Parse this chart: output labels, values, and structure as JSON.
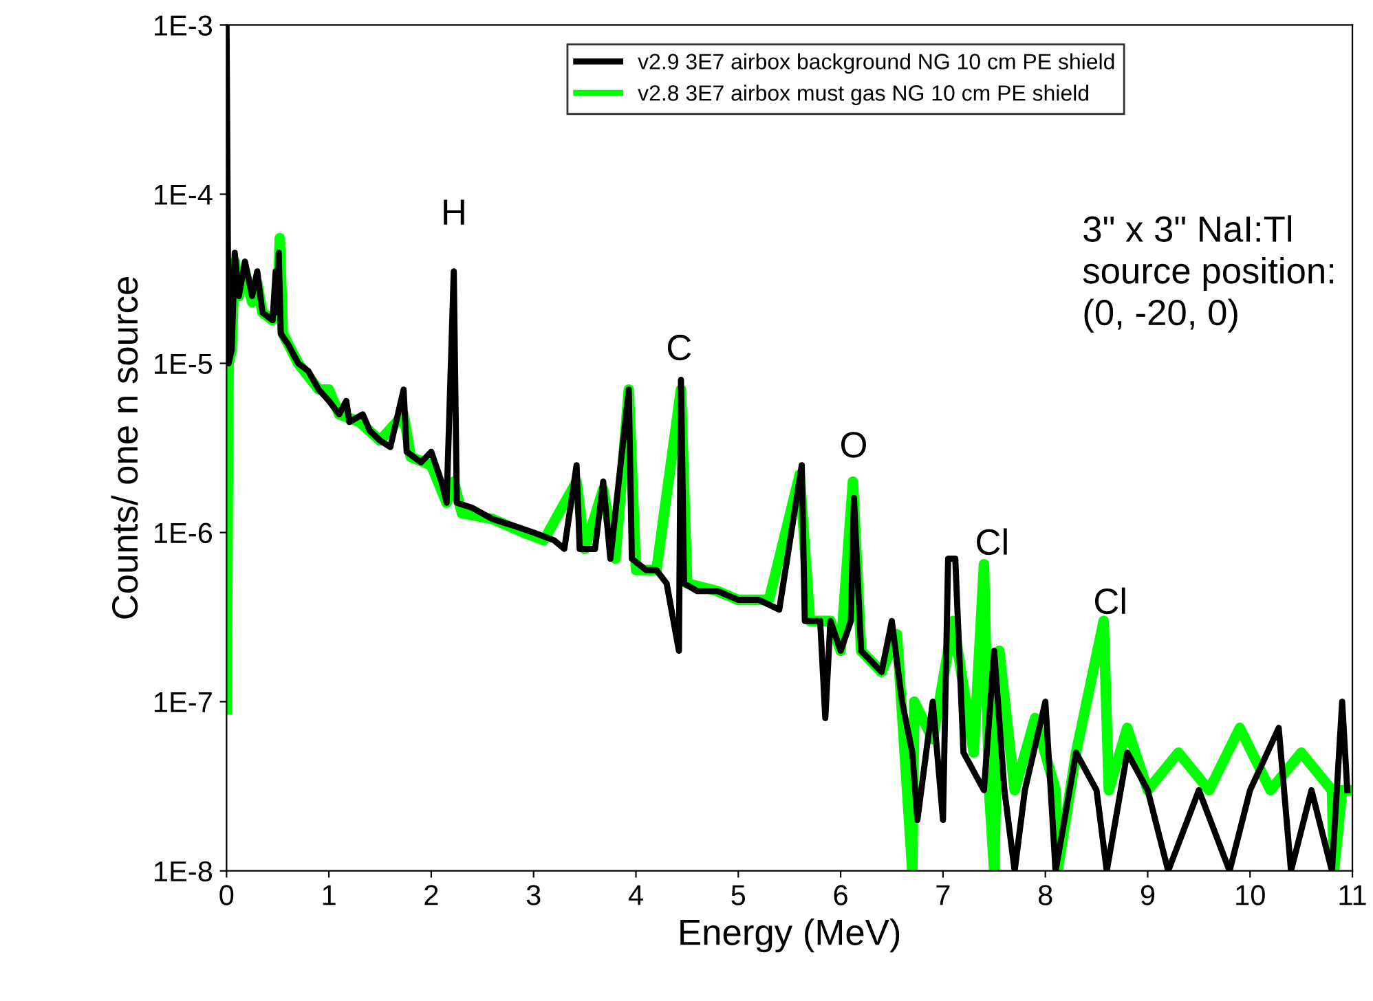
{
  "chart_data": {
    "type": "line",
    "xlabel": "Energy (MeV)",
    "ylabel": "Counts/ one n source",
    "xlim": [
      0,
      11
    ],
    "xticks": [
      0,
      1,
      2,
      3,
      4,
      5,
      6,
      7,
      8,
      9,
      10,
      11
    ],
    "ylim": [
      1e-08,
      0.001
    ],
    "log": "y",
    "yticks": [
      {
        "value": 1e-08,
        "label": "1E-8"
      },
      {
        "value": 1e-07,
        "label": "1E-7"
      },
      {
        "value": 1e-06,
        "label": "1E-6"
      },
      {
        "value": 1e-05,
        "label": "1E-5"
      },
      {
        "value": 0.0001,
        "label": "1E-4"
      },
      {
        "value": 0.001,
        "label": "1E-3"
      }
    ],
    "grid": false,
    "legend": "top",
    "marker": "none",
    "line_style": "solid",
    "series": [
      {
        "name": "v2.8 3E7 airbox must gas NG 10 cm PE shield",
        "color": "#00ff00",
        "x": [
          0.0,
          0.02,
          0.05,
          0.08,
          0.12,
          0.18,
          0.25,
          0.3,
          0.35,
          0.45,
          0.5,
          0.52,
          0.55,
          0.7,
          0.9,
          1.0,
          1.1,
          1.3,
          1.5,
          1.73,
          1.8,
          2.0,
          2.15,
          2.22,
          2.3,
          2.6,
          2.9,
          3.1,
          3.42,
          3.5,
          3.68,
          3.8,
          3.93,
          4.0,
          4.2,
          4.44,
          4.5,
          4.8,
          5.0,
          5.3,
          5.6,
          5.7,
          5.9,
          6.0,
          6.12,
          6.2,
          6.4,
          6.55,
          6.7,
          6.72,
          6.9,
          7.1,
          7.3,
          7.4,
          7.45,
          7.5,
          7.55,
          7.7,
          7.9,
          8.1,
          8.12,
          8.3,
          8.57,
          8.62,
          8.8,
          9.0,
          9.3,
          9.6,
          9.9,
          10.2,
          10.5,
          10.8,
          10.82,
          10.9,
          11.0
        ],
        "values": [
          9e-08,
          1e-05,
          1.2e-05,
          4e-05,
          2.5e-05,
          3.5e-05,
          2.3e-05,
          3e-05,
          2e-05,
          1.8e-05,
          2e-05,
          5.5e-05,
          1.5e-05,
          1e-05,
          7e-06,
          7e-06,
          5e-06,
          4.5e-06,
          3.5e-06,
          5e-06,
          2.8e-06,
          2.5e-06,
          1.5e-06,
          2e-06,
          1.3e-06,
          1.2e-06,
          1e-06,
          9e-07,
          2e-06,
          8e-07,
          1.8e-06,
          7e-07,
          7e-06,
          6e-07,
          6e-07,
          7e-06,
          5e-07,
          4.5e-07,
          4e-07,
          4e-07,
          2.2e-06,
          3e-07,
          3e-07,
          2e-07,
          2e-06,
          2e-07,
          1.5e-07,
          2.5e-07,
          1e-08,
          1e-07,
          6e-08,
          3e-07,
          5e-08,
          6.5e-07,
          3e-08,
          1e-08,
          2e-07,
          3e-08,
          8e-08,
          3e-08,
          1e-08,
          5e-08,
          3e-07,
          3e-08,
          7e-08,
          3e-08,
          5e-08,
          3e-08,
          7e-08,
          3e-08,
          5e-08,
          3e-08,
          1e-08,
          3e-08,
          3e-08
        ]
      },
      {
        "name": "v2.9 3E7 airbox background NG 10 cm PE shield",
        "color": "#000000",
        "x": [
          0.0,
          0.02,
          0.05,
          0.08,
          0.12,
          0.18,
          0.25,
          0.3,
          0.35,
          0.45,
          0.48,
          0.5,
          0.51,
          0.53,
          0.6,
          0.7,
          0.8,
          0.9,
          1.0,
          1.1,
          1.17,
          1.2,
          1.33,
          1.4,
          1.5,
          1.6,
          1.73,
          1.76,
          1.9,
          2.0,
          2.1,
          2.15,
          2.22,
          2.25,
          2.4,
          2.6,
          2.8,
          3.0,
          3.2,
          3.3,
          3.42,
          3.45,
          3.6,
          3.68,
          3.75,
          3.93,
          3.96,
          4.1,
          4.2,
          4.3,
          4.42,
          4.44,
          4.47,
          4.6,
          4.8,
          5.0,
          5.2,
          5.4,
          5.62,
          5.65,
          5.8,
          5.85,
          5.9,
          6.0,
          6.1,
          6.13,
          6.2,
          6.4,
          6.5,
          6.6,
          6.7,
          6.75,
          6.9,
          7.0,
          7.05,
          7.12,
          7.2,
          7.4,
          7.5,
          7.6,
          7.7,
          7.8,
          8.0,
          8.1,
          8.3,
          8.5,
          8.6,
          8.8,
          9.0,
          9.2,
          9.5,
          9.8,
          10.0,
          10.28,
          10.4,
          10.6,
          10.8,
          10.9,
          10.95
        ],
        "values": [
          0.001,
          1e-05,
          1.2e-05,
          4.5e-05,
          2.5e-05,
          4e-05,
          2.5e-05,
          3.5e-05,
          2e-05,
          1.8e-05,
          3.5e-05,
          2e-05,
          4.5e-05,
          1.5e-05,
          1.3e-05,
          1e-05,
          9e-06,
          7e-06,
          6e-06,
          5e-06,
          6e-06,
          4.5e-06,
          5e-06,
          4e-06,
          3.5e-06,
          3.2e-06,
          7e-06,
          3e-06,
          2.6e-06,
          3e-06,
          2e-06,
          1.5e-06,
          3.5e-05,
          1.5e-06,
          1.4e-06,
          1.2e-06,
          1.1e-06,
          1e-06,
          9e-07,
          8e-07,
          2.5e-06,
          8e-07,
          8e-07,
          2e-06,
          7e-07,
          7e-06,
          7e-07,
          6e-07,
          6e-07,
          5e-07,
          2e-07,
          8e-06,
          5e-07,
          4.5e-07,
          4.5e-07,
          4e-07,
          4e-07,
          3.5e-07,
          2.5e-06,
          3e-07,
          3e-07,
          8e-08,
          3e-07,
          2e-07,
          3e-07,
          1.6e-06,
          2e-07,
          1.5e-07,
          3e-07,
          1e-07,
          5e-08,
          2e-08,
          1e-07,
          2e-08,
          7e-07,
          7e-07,
          5e-08,
          3e-08,
          2e-07,
          3e-08,
          1e-08,
          3e-08,
          1e-07,
          1e-08,
          5e-08,
          3e-08,
          1e-08,
          5e-08,
          3e-08,
          1e-08,
          3e-08,
          1e-08,
          3e-08,
          7e-08,
          1e-08,
          3e-08,
          1e-08,
          1e-07,
          3e-08
        ]
      }
    ],
    "annotations": [
      "H",
      "C",
      "O",
      "Cl",
      "Cl",
      "3\" x 3\" NaI:Tl\nsource position:\n(0, -20, 0)"
    ]
  }
}
